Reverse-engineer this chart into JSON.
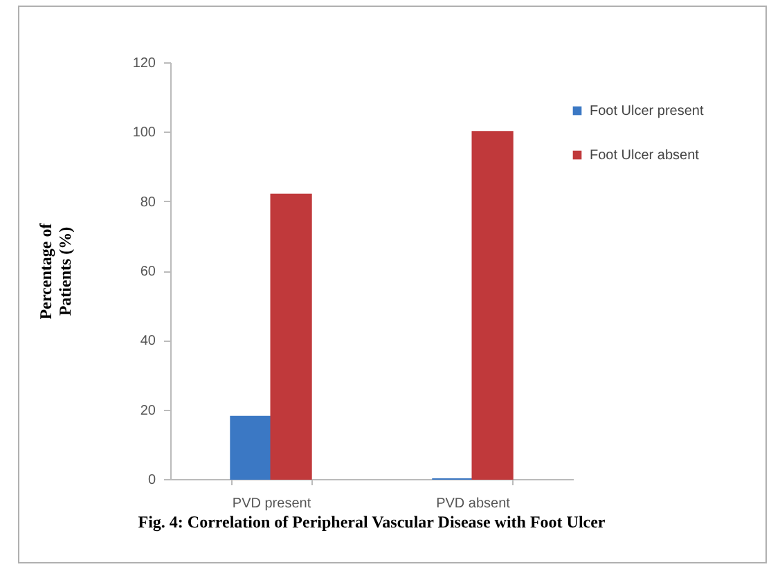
{
  "chart_data": {
    "type": "bar",
    "title": "Fig. 4: Correlation of Peripheral Vascular Disease with Foot Ulcer",
    "ylabel": "Percentage of Patients (%)",
    "categories": [
      "PVD present",
      "PVD absent"
    ],
    "series": [
      {
        "name": "Foot Ulcer present",
        "color": "#3b78c4",
        "values": [
          18,
          0
        ]
      },
      {
        "name": "Foot Ulcer absent",
        "color": "#c0393b",
        "values": [
          82,
          100
        ]
      }
    ],
    "ylim": [
      0,
      120
    ],
    "yticks": [
      0,
      20,
      40,
      60,
      80,
      100,
      120
    ],
    "grid": false,
    "legend": "top right"
  }
}
